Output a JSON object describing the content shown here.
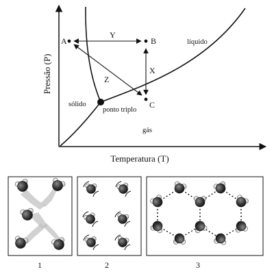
{
  "phase_diagram": {
    "y_axis_label": "Pressão (P)",
    "x_axis_label": "Temperatura (T)",
    "regions": {
      "solid": "sólido",
      "liquid": "líquido",
      "gas": "gás"
    },
    "triple_point_label": "ponto triplo",
    "points": {
      "a": "A",
      "b": "B",
      "c": "C"
    },
    "arrows": {
      "y": "Y",
      "x": "X",
      "z": "Z"
    }
  },
  "panels": [
    {
      "label": "1",
      "content": "gas-like dispersed molecules"
    },
    {
      "label": "2",
      "content": "liquid-like molecules with motion arcs"
    },
    {
      "label": "3",
      "content": "solid hexagonal ice lattice"
    }
  ]
}
